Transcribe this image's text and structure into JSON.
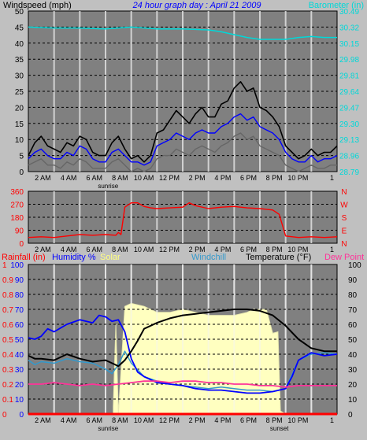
{
  "colors": {
    "page_bg": "#c0c0c0",
    "plot_bg": "#808080",
    "black": "#000000",
    "gust": "#000000",
    "wind_blue": "#0000ff",
    "wind_grey": "#666666",
    "barometer": "#00d8d8",
    "wind_dir": "#ff0000",
    "humidity": "#0000ff",
    "windchill": "#3399cc",
    "dew": "#ff3399",
    "solar": "#ffffc0",
    "solar_edge": "#e8e8b0",
    "rain": "#ff0000",
    "temp": "#000000",
    "title": "#0000ff"
  },
  "x_ticks": [
    {
      "h": 2,
      "label": "2 AM"
    },
    {
      "h": 4,
      "label": "4 AM"
    },
    {
      "h": 6,
      "label": "6 AM"
    },
    {
      "h": 8,
      "label": "8 AM"
    },
    {
      "h": 10,
      "label": "10 AM"
    },
    {
      "h": 12,
      "label": "12 PM"
    },
    {
      "h": 14,
      "label": "2 PM"
    },
    {
      "h": 16,
      "label": "4 PM"
    },
    {
      "h": 18,
      "label": "6 PM"
    },
    {
      "h": 20,
      "label": "8 PM"
    },
    {
      "h": 22,
      "label": "10 PM"
    },
    {
      "h": 24,
      "label": "1"
    }
  ],
  "sunrise": {
    "h": 6.2,
    "label": "sunrise"
  },
  "sunset": {
    "h": 20,
    "label": "sunset"
  },
  "chart_data": [
    {
      "type": "line",
      "title": "24 hour graph day : April 21 2009",
      "ylabel": "Windspeed (mph)",
      "y2label": "Barometer (in)",
      "ylim": [
        0,
        50
      ],
      "y2lim": [
        28.79,
        30.49
      ],
      "xlim": [
        0,
        24
      ],
      "grid": true,
      "yticks": [
        "0",
        "5",
        "10",
        "15",
        "20",
        "25",
        "30",
        "35",
        "40",
        "45",
        "50"
      ],
      "y2ticks": [
        "28.79",
        "28.96",
        "29.13",
        "29.30",
        "29.47",
        "29.64",
        "29.81",
        "29.98",
        "30.15",
        "30.32",
        "30.49"
      ],
      "series": [
        {
          "id": "gust",
          "axis": "left",
          "x": [
            0,
            0.5,
            1,
            1.5,
            2,
            2.5,
            3,
            3.5,
            4,
            4.5,
            5,
            5.5,
            6,
            6.5,
            7,
            7.5,
            8,
            8.5,
            9,
            9.5,
            10,
            10.5,
            11,
            11.5,
            12,
            12.5,
            13,
            13.5,
            14,
            14.5,
            15,
            15.5,
            16,
            16.5,
            17,
            17.5,
            18,
            18.5,
            19,
            19.5,
            20,
            20.5,
            21,
            21.5,
            22,
            22.5,
            23,
            23.5,
            24
          ],
          "values": [
            5,
            9,
            11,
            8,
            7,
            6,
            9,
            8,
            11,
            10,
            6,
            5,
            5,
            9,
            11,
            7,
            4,
            5,
            3,
            5,
            12,
            13,
            16,
            19,
            17,
            15,
            18,
            20,
            17,
            17,
            21,
            22,
            26,
            28,
            25,
            26,
            20,
            19,
            17,
            14,
            8,
            6,
            4,
            5,
            7,
            5,
            6,
            6,
            8
          ]
        },
        {
          "id": "wind_avg",
          "axis": "left",
          "x": [
            0,
            0.5,
            1,
            1.5,
            2,
            2.5,
            3,
            3.5,
            4,
            4.5,
            5,
            5.5,
            6,
            6.5,
            7,
            7.5,
            8,
            8.5,
            9,
            9.5,
            10,
            10.5,
            11,
            11.5,
            12,
            12.5,
            13,
            13.5,
            14,
            14.5,
            15,
            15.5,
            16,
            16.5,
            17,
            17.5,
            18,
            18.5,
            19,
            19.5,
            20,
            20.5,
            21,
            21.5,
            22,
            22.5,
            23,
            23.5,
            24
          ],
          "values": [
            4,
            6,
            7,
            5,
            4,
            4,
            6,
            5,
            8,
            7,
            4,
            3,
            3,
            6,
            7,
            5,
            3,
            3,
            2,
            3,
            8,
            9,
            10,
            12,
            11,
            10,
            12,
            13,
            12,
            12,
            14,
            15,
            17,
            18,
            16,
            17,
            14,
            13,
            12,
            10,
            6,
            4,
            3,
            3,
            5,
            3,
            4,
            4,
            5
          ]
        },
        {
          "id": "wind_min",
          "axis": "left",
          "x": [
            0,
            0.5,
            1,
            1.5,
            2,
            2.5,
            3,
            3.5,
            4,
            4.5,
            5,
            5.5,
            6,
            6.5,
            7,
            7.5,
            8,
            8.5,
            9,
            9.5,
            10,
            10.5,
            11,
            11.5,
            12,
            12.5,
            13,
            13.5,
            14,
            14.5,
            15,
            15.5,
            16,
            16.5,
            17,
            17.5,
            18,
            18.5,
            19,
            19.5,
            20,
            20.5,
            21,
            21.5,
            22,
            22.5,
            23,
            23.5,
            24
          ],
          "values": [
            2,
            3,
            4,
            2,
            2,
            1,
            3,
            2,
            4,
            3,
            1,
            1,
            1,
            3,
            4,
            2,
            0,
            1,
            0,
            1,
            4,
            5,
            5,
            7,
            6,
            5,
            7,
            8,
            7,
            6,
            8,
            9,
            11,
            12,
            10,
            11,
            8,
            7,
            6,
            5,
            2,
            1,
            0,
            1,
            2,
            1,
            1,
            2,
            2
          ]
        },
        {
          "id": "barometer",
          "axis": "right",
          "x": [
            0,
            2,
            4,
            6,
            8,
            10,
            12,
            14,
            15,
            16,
            17,
            18,
            19,
            20,
            21,
            22,
            23,
            24
          ],
          "values": [
            30.32,
            30.31,
            30.31,
            30.3,
            30.32,
            30.3,
            30.3,
            30.29,
            30.27,
            30.24,
            30.21,
            30.19,
            30.19,
            30.19,
            30.21,
            30.22,
            30.21,
            30.21
          ]
        }
      ]
    },
    {
      "type": "line",
      "ylabel": "Wind direction",
      "ylim": [
        0,
        360
      ],
      "xlim": [
        0,
        24
      ],
      "yticks": [
        "0",
        "90",
        "180",
        "270",
        "360"
      ],
      "direction_labels": [
        "N",
        "W",
        "S",
        "E",
        "N"
      ],
      "series": [
        {
          "id": "wind_dir",
          "axis": "left",
          "x": [
            0,
            1,
            2,
            3,
            4,
            5,
            6,
            6.8,
            7,
            7.2,
            7.5,
            8,
            8.5,
            9,
            9.5,
            10,
            11,
            12,
            12.5,
            13,
            14,
            15,
            16,
            17,
            18,
            18.5,
            19,
            19.5,
            20,
            21,
            22,
            23,
            24
          ],
          "values": [
            40,
            45,
            40,
            50,
            60,
            55,
            60,
            55,
            75,
            60,
            250,
            280,
            280,
            255,
            245,
            240,
            245,
            250,
            280,
            260,
            240,
            250,
            255,
            245,
            240,
            235,
            230,
            200,
            50,
            40,
            45,
            40,
            45
          ]
        }
      ]
    },
    {
      "type": "line",
      "ylabel_left_parts": [
        "Rainfall (in)",
        "Humidity %",
        "Solar"
      ],
      "ylabel_mid": "Windchill",
      "ylabel_right_parts": [
        "Temperature (°F)",
        "Dew Point"
      ],
      "ylim": [
        0,
        100
      ],
      "rainlim": [
        0,
        1
      ],
      "xlim": [
        0,
        24
      ],
      "yticks_left": [
        "0",
        "10",
        "20",
        "30",
        "40",
        "50",
        "60",
        "70",
        "80",
        "90",
        "100"
      ],
      "yticks_right": [
        "0",
        "10",
        "20",
        "30",
        "40",
        "50",
        "60",
        "70",
        "80",
        "90",
        "100"
      ],
      "yticks_rain": [
        "0",
        "0.1",
        "0.2",
        "0.3",
        "0.4",
        "0.5",
        "0.6",
        "0.7",
        "0.8",
        "0.9",
        "1"
      ],
      "series": [
        {
          "id": "solar",
          "axis": "left",
          "x": [
            6.6,
            6.8,
            7,
            7.5,
            8,
            9,
            10,
            11,
            12,
            13,
            14,
            15,
            16,
            17,
            17.5,
            18,
            18.5,
            19,
            19.4,
            19.6,
            20
          ],
          "values": [
            5,
            60,
            0,
            72,
            74,
            72,
            68,
            68,
            70,
            68,
            66,
            66,
            66,
            68,
            70,
            70,
            70,
            54,
            55,
            2,
            0
          ]
        },
        {
          "id": "humidity",
          "axis": "left",
          "x": [
            0,
            0.5,
            1,
            1.5,
            2,
            3,
            4,
            5,
            5.5,
            6,
            6.5,
            7,
            7.5,
            8,
            8.5,
            9,
            10,
            11,
            12,
            13,
            14,
            15,
            16,
            17,
            18,
            19,
            19.5,
            20,
            20.5,
            21,
            22,
            23,
            24
          ],
          "values": [
            51,
            50,
            52,
            57,
            55,
            60,
            63,
            61,
            66,
            65,
            62,
            63,
            55,
            37,
            28,
            25,
            21,
            20,
            19,
            17,
            16,
            16,
            15,
            14,
            14,
            15,
            16,
            17,
            25,
            36,
            41,
            39,
            40
          ]
        },
        {
          "id": "windchill",
          "axis": "left",
          "x": [
            0,
            0.5,
            1,
            2,
            3,
            4,
            5,
            6,
            6.5,
            7,
            7.5,
            8,
            9,
            10,
            11,
            12,
            13,
            14,
            15,
            16,
            17,
            18,
            19,
            20,
            21,
            22,
            23,
            24
          ],
          "values": [
            36,
            33,
            35,
            34,
            37,
            35,
            34,
            30,
            27,
            33,
            42,
            34,
            25,
            22,
            20,
            19,
            18,
            17,
            18,
            17,
            16,
            16,
            15,
            17,
            36,
            40,
            41,
            40
          ]
        },
        {
          "id": "temperature",
          "axis": "left",
          "x": [
            0,
            0.5,
            1,
            2,
            3,
            4,
            5,
            6,
            6.5,
            7,
            7.5,
            8,
            8.5,
            9,
            10,
            11,
            12,
            13,
            14,
            15,
            16,
            17,
            18,
            19,
            20,
            21,
            22,
            23,
            24
          ],
          "values": [
            39,
            37,
            37,
            36,
            40,
            37,
            35,
            36,
            34,
            32,
            36,
            42,
            49,
            57,
            61,
            64,
            66,
            67,
            68,
            69,
            70,
            70,
            69,
            66,
            59,
            50,
            44,
            42,
            42
          ]
        },
        {
          "id": "dew",
          "axis": "left",
          "x": [
            0,
            1,
            2,
            3,
            4,
            5,
            6,
            7,
            8,
            9,
            10,
            11,
            12,
            13,
            14,
            15,
            16,
            17,
            18,
            19,
            20,
            21,
            22,
            23,
            24
          ],
          "values": [
            20,
            20,
            21,
            20,
            19,
            20,
            19,
            20,
            21,
            22,
            22,
            21,
            22,
            22,
            21,
            21,
            20,
            20,
            19,
            19,
            18,
            19,
            19,
            19,
            19
          ]
        },
        {
          "id": "rain",
          "axis": "left",
          "x": [
            0,
            24
          ],
          "values": [
            0,
            0
          ]
        }
      ]
    }
  ]
}
